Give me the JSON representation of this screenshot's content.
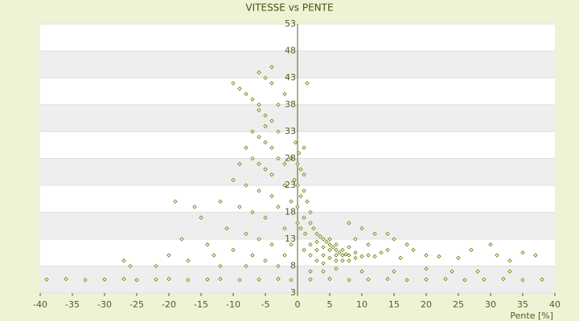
{
  "chart_data": {
    "type": "scatter",
    "title": "VITESSE vs PENTE",
    "x_label": "Pente [%]",
    "color": "#6b7a00",
    "grid": true,
    "xlim": [
      -40,
      40
    ],
    "xticks": [
      -40,
      -35,
      -30,
      -25,
      -20,
      -15,
      -10,
      -5,
      0,
      5,
      10,
      15,
      20,
      25,
      30,
      35,
      40
    ],
    "ylim": [
      3,
      53
    ],
    "yticks": [
      3,
      8,
      13,
      18,
      23,
      28,
      33,
      38,
      43,
      48,
      53
    ],
    "x": [
      -39,
      -36,
      -33,
      -30,
      -27,
      -25,
      -22,
      -20,
      -17,
      -14,
      -12,
      -9,
      -6,
      -3,
      -1,
      2,
      5,
      8,
      11,
      14,
      17,
      20,
      23,
      26,
      29,
      32,
      35,
      38,
      -10,
      -9,
      -8,
      -7,
      -6,
      -5,
      -4,
      -6,
      -5,
      -4,
      -7,
      -6,
      -5,
      -4,
      -3,
      -8,
      -9,
      -7,
      -6,
      -5,
      -4,
      -3,
      -2,
      -10,
      -8,
      -6,
      -4,
      -2,
      -12,
      -9,
      -7,
      -5,
      -3,
      -15,
      -11,
      -8,
      -6,
      -4,
      -2,
      -18,
      -14,
      -13,
      -20,
      -17,
      -10,
      -7,
      -5,
      -3,
      -22,
      -19,
      -27,
      -26,
      -16,
      -12,
      -8,
      -5,
      -6,
      -3,
      -4,
      -2,
      0,
      0.5,
      1,
      -0.5,
      0,
      1,
      0.5,
      1.5,
      -1,
      0,
      2,
      1,
      0,
      -1,
      0.2,
      1,
      -0.3,
      1.5,
      0.5,
      1.2,
      2,
      2.5,
      3,
      3.5,
      4,
      4.5,
      5,
      5.5,
      6,
      6.5,
      7,
      7.5,
      8,
      9,
      10,
      2,
      3,
      4,
      5,
      6,
      2,
      3,
      4,
      5,
      6,
      7,
      8,
      9,
      3,
      4,
      5,
      6,
      7,
      8,
      11,
      12,
      13,
      14,
      16,
      18,
      20,
      22,
      25,
      27,
      30,
      31,
      33,
      35,
      37,
      15,
      17,
      9,
      11,
      12,
      8,
      10,
      14,
      -1,
      -2,
      1,
      2,
      4,
      6,
      10,
      15,
      20,
      24,
      28,
      33
    ],
    "values": [
      5.5,
      5.6,
      5.4,
      5.5,
      5.6,
      5.4,
      5.5,
      5.6,
      5.4,
      5.5,
      5.6,
      5.4,
      5.5,
      5.6,
      5.4,
      5.5,
      5.6,
      5.4,
      5.5,
      5.6,
      5.4,
      5.5,
      5.6,
      5.4,
      5.5,
      5.6,
      5.4,
      5.5,
      42,
      41,
      40,
      39,
      44,
      43,
      42,
      37,
      36,
      35,
      33,
      32,
      31,
      30,
      33,
      30,
      27,
      28,
      27,
      26,
      25,
      28,
      27,
      24,
      23,
      22,
      21,
      23,
      20,
      19,
      18,
      17,
      19,
      17,
      15,
      14,
      13,
      12,
      15,
      13,
      12,
      10,
      10,
      9,
      11,
      10,
      9,
      8,
      8,
      20,
      9,
      8,
      19,
      8,
      8,
      34,
      38,
      38,
      45,
      40,
      27,
      26,
      25,
      24,
      23,
      22,
      21,
      20,
      20,
      19,
      18,
      17,
      16,
      28,
      29,
      30,
      31,
      42,
      15,
      14,
      16,
      15,
      14,
      13.5,
      13,
      12.5,
      12,
      11.5,
      11,
      10.5,
      10,
      10.2,
      10,
      9.5,
      9.8,
      12,
      11,
      10,
      9.5,
      9,
      10,
      9,
      8.5,
      11,
      12,
      11,
      11.5,
      10.5,
      12.5,
      11.5,
      13,
      10,
      9,
      9,
      10,
      9.8,
      10.5,
      11,
      9.5,
      11,
      10,
      9.8,
      9.5,
      11,
      12,
      10,
      9,
      10.5,
      10,
      13,
      12,
      13,
      12,
      14,
      16,
      15,
      14,
      12,
      10,
      11,
      7,
      7,
      7.5,
      7,
      7,
      7.5,
      7,
      7,
      7
    ]
  }
}
